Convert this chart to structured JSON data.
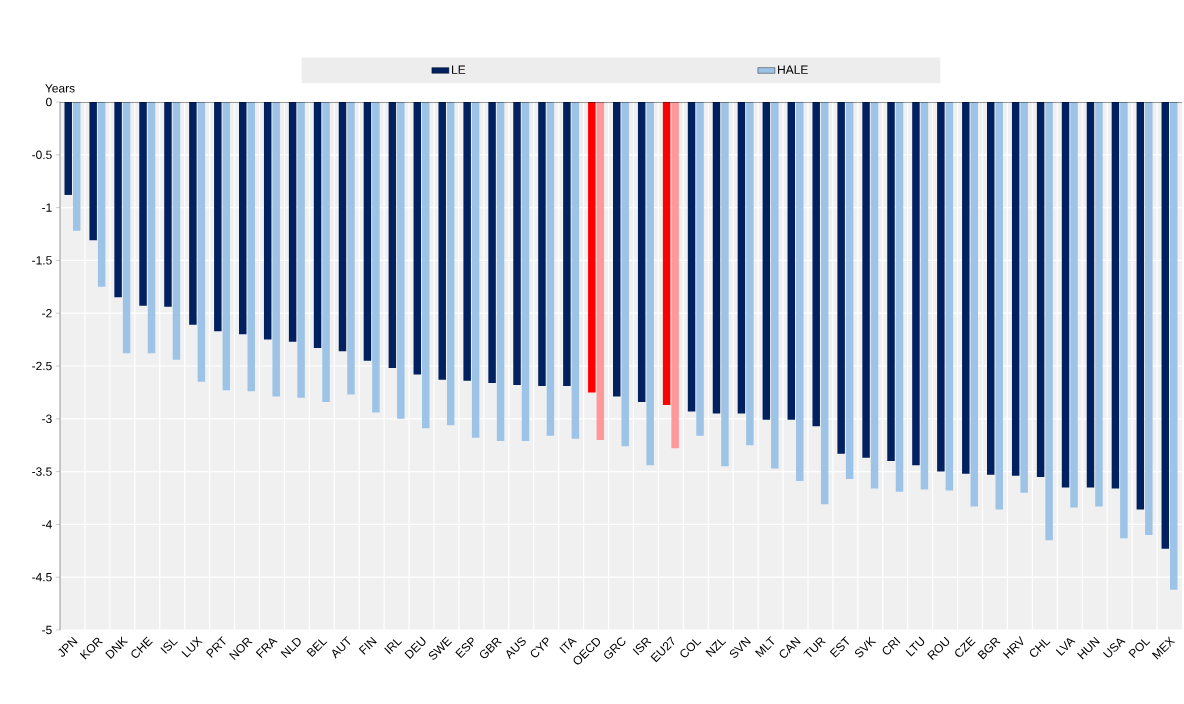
{
  "chart_data": {
    "type": "bar",
    "ylabel": "Years",
    "categories": [
      "JPN",
      "KOR",
      "DNK",
      "CHE",
      "ISL",
      "LUX",
      "PRT",
      "NOR",
      "FRA",
      "NLD",
      "BEL",
      "AUT",
      "FIN",
      "IRL",
      "DEU",
      "SWE",
      "ESP",
      "GBR",
      "AUS",
      "CYP",
      "ITA",
      "OECD",
      "GRC",
      "ISR",
      "EU27",
      "COL",
      "NZL",
      "SVN",
      "MLT",
      "CAN",
      "TUR",
      "EST",
      "SVK",
      "CRI",
      "LTU",
      "ROU",
      "CZE",
      "BGR",
      "HRV",
      "CHL",
      "LVA",
      "HUN",
      "USA",
      "POL",
      "MEX"
    ],
    "series": [
      {
        "name": "LE",
        "color": "#002060",
        "colors": [
          "#002060",
          "#002060",
          "#002060",
          "#002060",
          "#002060",
          "#002060",
          "#002060",
          "#002060",
          "#002060",
          "#002060",
          "#002060",
          "#002060",
          "#002060",
          "#002060",
          "#002060",
          "#002060",
          "#002060",
          "#002060",
          "#002060",
          "#002060",
          "#002060",
          "#ff0000",
          "#002060",
          "#002060",
          "#ff0000",
          "#002060",
          "#002060",
          "#002060",
          "#002060",
          "#002060",
          "#002060",
          "#002060",
          "#002060",
          "#002060",
          "#002060",
          "#002060",
          "#002060",
          "#002060",
          "#002060",
          "#002060",
          "#002060",
          "#002060",
          "#002060",
          "#002060",
          "#002060"
        ],
        "values": [
          -0.88,
          -1.31,
          -1.85,
          -1.93,
          -1.94,
          -2.11,
          -2.17,
          -2.2,
          -2.25,
          -2.27,
          -2.33,
          -2.36,
          -2.45,
          -2.52,
          -2.58,
          -2.63,
          -2.64,
          -2.66,
          -2.68,
          -2.69,
          -2.69,
          -2.75,
          -2.79,
          -2.84,
          -2.87,
          -2.93,
          -2.95,
          -2.95,
          -3.01,
          -3.01,
          -3.07,
          -3.33,
          -3.37,
          -3.4,
          -3.44,
          -3.5,
          -3.52,
          -3.53,
          -3.54,
          -3.55,
          -3.65,
          -3.65,
          -3.66,
          -3.86,
          -4.23
        ]
      },
      {
        "name": "HALE",
        "color": "#9dc3e6",
        "colors": [
          "#9dc3e6",
          "#9dc3e6",
          "#9dc3e6",
          "#9dc3e6",
          "#9dc3e6",
          "#9dc3e6",
          "#9dc3e6",
          "#9dc3e6",
          "#9dc3e6",
          "#9dc3e6",
          "#9dc3e6",
          "#9dc3e6",
          "#9dc3e6",
          "#9dc3e6",
          "#9dc3e6",
          "#9dc3e6",
          "#9dc3e6",
          "#9dc3e6",
          "#9dc3e6",
          "#9dc3e6",
          "#9dc3e6",
          "#ff9999",
          "#9dc3e6",
          "#9dc3e6",
          "#ff9999",
          "#9dc3e6",
          "#9dc3e6",
          "#9dc3e6",
          "#9dc3e6",
          "#9dc3e6",
          "#9dc3e6",
          "#9dc3e6",
          "#9dc3e6",
          "#9dc3e6",
          "#9dc3e6",
          "#9dc3e6",
          "#9dc3e6",
          "#9dc3e6",
          "#9dc3e6",
          "#9dc3e6",
          "#9dc3e6",
          "#9dc3e6",
          "#9dc3e6",
          "#9dc3e6",
          "#9dc3e6"
        ],
        "values": [
          -1.22,
          -1.75,
          -2.38,
          -2.38,
          -2.44,
          -2.65,
          -2.73,
          -2.74,
          -2.79,
          -2.8,
          -2.84,
          -2.77,
          -2.94,
          -3.0,
          -3.09,
          -3.06,
          -3.18,
          -3.21,
          -3.21,
          -3.16,
          -3.19,
          -3.2,
          -3.26,
          -3.44,
          -3.28,
          -3.16,
          -3.45,
          -3.25,
          -3.47,
          -3.59,
          -3.81,
          -3.57,
          -3.66,
          -3.69,
          -3.67,
          -3.68,
          -3.83,
          -3.86,
          -3.7,
          -4.15,
          -3.84,
          -3.83,
          -4.13,
          -4.1,
          -4.62
        ]
      }
    ],
    "ylim": [
      -5,
      0
    ],
    "yticks": [
      0,
      -0.5,
      -1,
      -1.5,
      -2,
      -2.5,
      -3,
      -3.5,
      -4,
      -4.5,
      -5
    ],
    "grid": true,
    "legend": "top"
  }
}
